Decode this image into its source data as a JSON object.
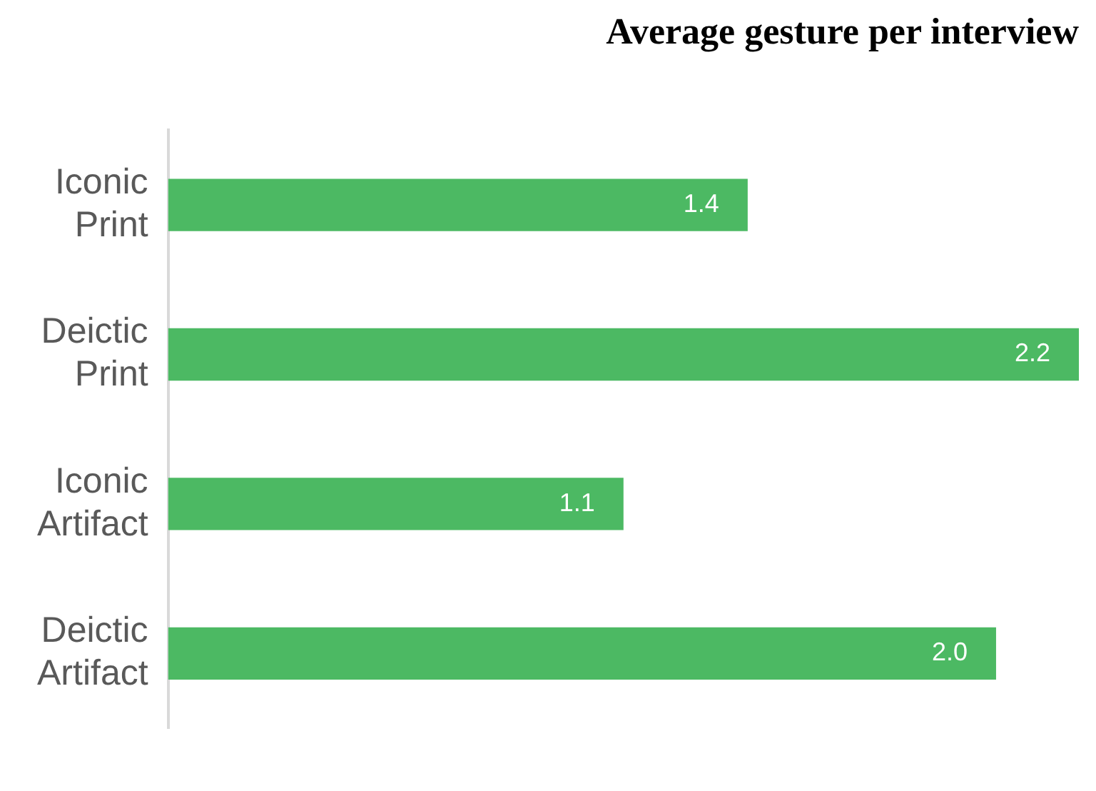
{
  "chart_data": {
    "type": "bar",
    "orientation": "horizontal",
    "title": "Average gesture per interview",
    "categories": [
      "Iconic Print",
      "Deictic Print",
      "Iconic Artifact",
      "Deictic Artifact"
    ],
    "values": [
      1.4,
      2.2,
      1.1,
      2.0
    ],
    "value_labels": [
      "1.4",
      "2.2",
      "1.1",
      "2.0"
    ],
    "color": "#4cb963",
    "tick_labels": "y"
  }
}
